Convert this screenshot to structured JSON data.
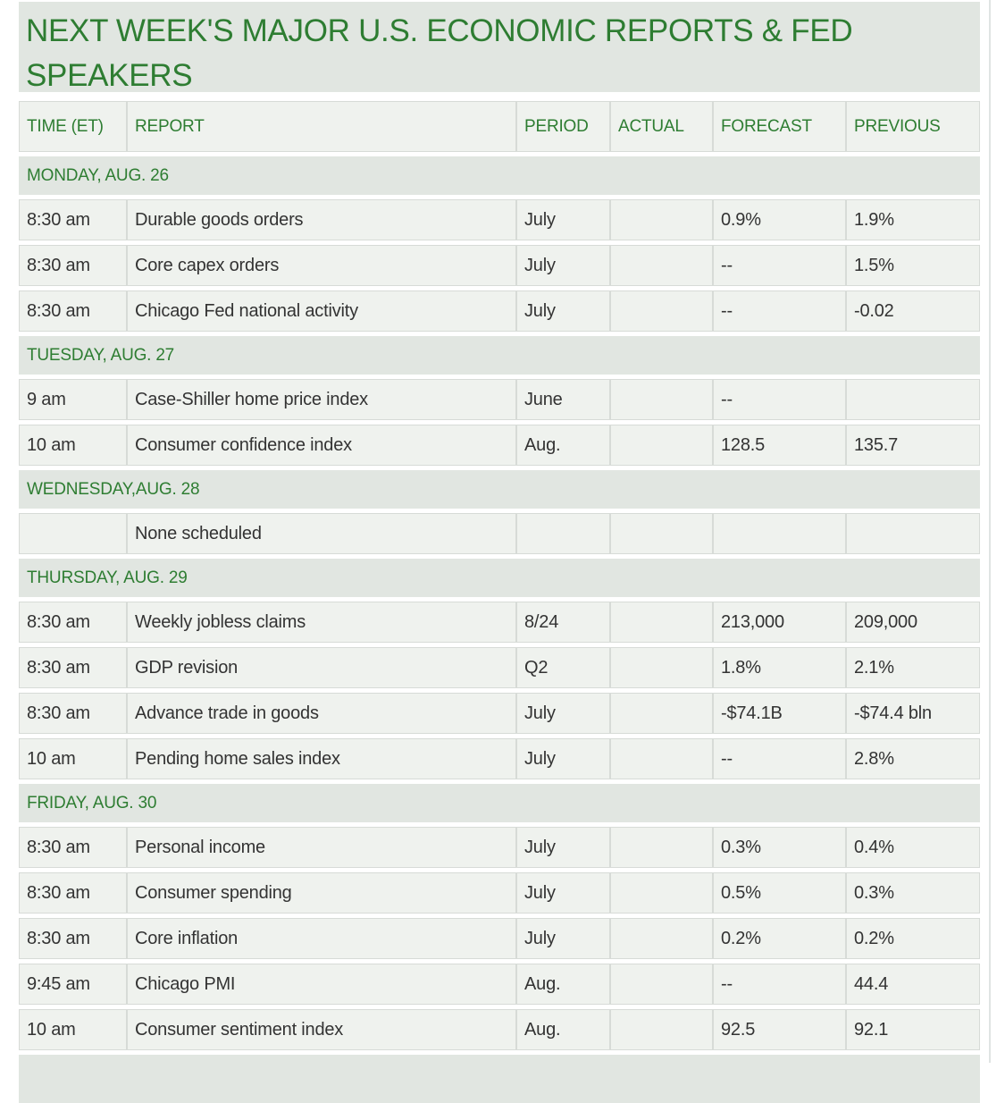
{
  "title": "NEXT WEEK'S MAJOR U.S. ECONOMIC REPORTS & FED SPEAKERS",
  "colors": {
    "green": "#2e7d32",
    "band": "#e1e6e1",
    "cell": "#eff2ee",
    "border": "#d7dbd7",
    "text": "#333333"
  },
  "table": {
    "columns": [
      "TIME (ET)",
      "REPORT",
      "PERIOD",
      "ACTUAL",
      "FORECAST",
      "PREVIOUS"
    ],
    "sections": [
      {
        "day": "MONDAY, AUG. 26",
        "rows": [
          [
            "8:30 am",
            "Durable goods orders",
            "July",
            "",
            "0.9%",
            "1.9%"
          ],
          [
            "8:30 am",
            "Core capex orders",
            "July",
            "",
            "--",
            "1.5%"
          ],
          [
            "8:30 am",
            "Chicago Fed national activity",
            "July",
            "",
            "--",
            "-0.02"
          ]
        ]
      },
      {
        "day": "TUESDAY, AUG. 27",
        "rows": [
          [
            "9 am",
            "Case-Shiller home price index",
            "June",
            "",
            "--",
            ""
          ],
          [
            "10 am",
            "Consumer confidence index",
            "Aug.",
            "",
            "128.5",
            "135.7"
          ]
        ]
      },
      {
        "day": "WEDNESDAY,AUG. 28",
        "rows": [
          [
            "",
            "None scheduled",
            "",
            "",
            "",
            ""
          ]
        ]
      },
      {
        "day": "THURSDAY, AUG. 29",
        "rows": [
          [
            "8:30 am",
            "Weekly jobless claims",
            "8/24",
            "",
            "213,000",
            "209,000"
          ],
          [
            "8:30 am",
            "GDP revision",
            "Q2",
            "",
            "1.8%",
            "2.1%"
          ],
          [
            "8:30 am",
            "Advance trade in goods",
            "July",
            "",
            "-$74.1B",
            "-$74.4 bln"
          ],
          [
            "10 am",
            "Pending home sales index",
            "July",
            "",
            "--",
            "2.8%"
          ]
        ]
      },
      {
        "day": "FRIDAY, AUG. 30",
        "rows": [
          [
            "8:30 am",
            "Personal income",
            "July",
            "",
            "0.3%",
            "0.4%"
          ],
          [
            "8:30 am",
            "Consumer spending",
            "July",
            "",
            "0.5%",
            "0.3%"
          ],
          [
            "8:30 am",
            "Core inflation",
            "July",
            "",
            "0.2%",
            "0.2%"
          ],
          [
            "9:45 am",
            "Chicago PMI",
            "Aug.",
            "",
            "--",
            "44.4"
          ],
          [
            "10 am",
            "Consumer sentiment index",
            "Aug.",
            "",
            "92.5",
            "92.1"
          ]
        ]
      }
    ]
  }
}
